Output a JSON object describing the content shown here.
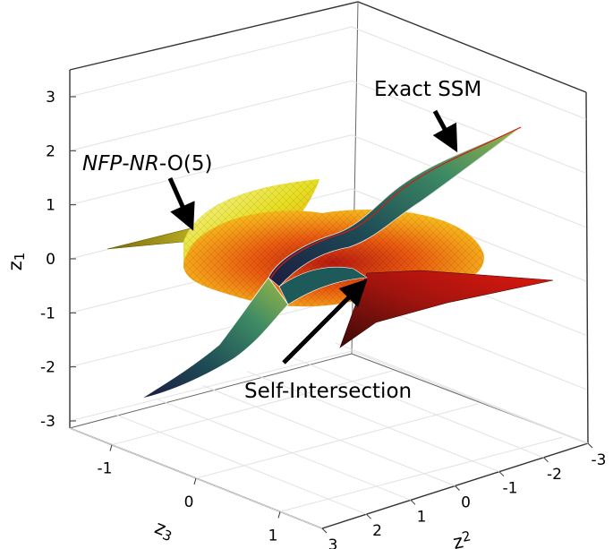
{
  "chart_data": {
    "type": "surface3d",
    "title": "",
    "axes": {
      "z1": {
        "label": "z",
        "subscript": "1",
        "range": [
          -3,
          3
        ],
        "ticks": [
          "3",
          "2",
          "1",
          "0",
          "-1",
          "-2",
          "-3"
        ]
      },
      "z2": {
        "label": "z",
        "subscript": "2",
        "range": [
          -3,
          3
        ],
        "ticks": [
          "-3",
          "-2",
          "-1",
          "0",
          "1",
          "2",
          "3"
        ]
      },
      "z3": {
        "label": "z",
        "subscript": "3",
        "range": [
          -1.5,
          1.5
        ],
        "ticks": [
          "-1",
          "0",
          "1"
        ]
      }
    },
    "grid": true,
    "surfaces": [
      {
        "name": "Exact SSM",
        "colormap": "teal-green"
      },
      {
        "name": "NFP-NR-O(5)",
        "colormap": "red-yellow"
      }
    ],
    "annotations": {
      "exact": "Exact SSM",
      "nfp_italic_1": "NFP",
      "nfp_dash_1": "-",
      "nfp_italic_2": "NR",
      "nfp_rest": "-O(5)",
      "selfint": "Self-Intersection"
    }
  }
}
